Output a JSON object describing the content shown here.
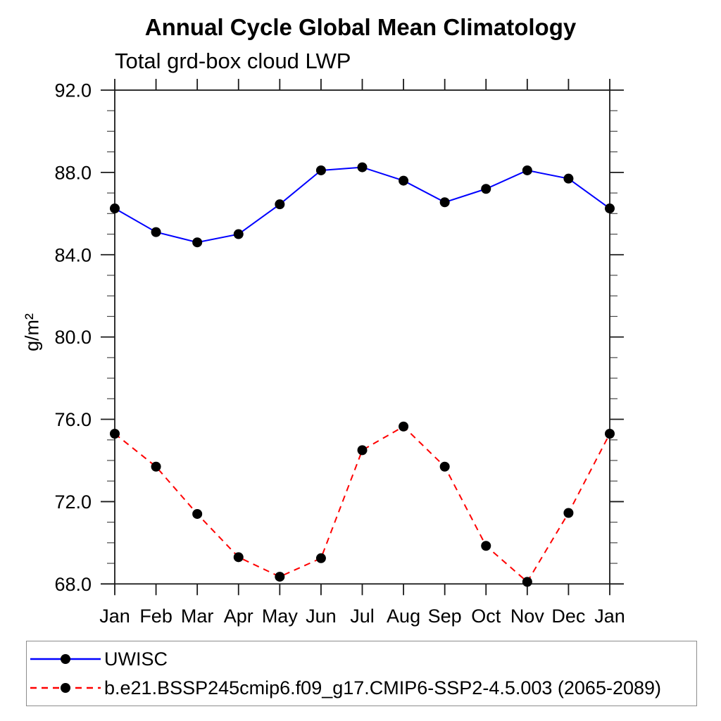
{
  "chart_data": {
    "type": "line",
    "title": "Annual Cycle Global Mean Climatology",
    "subtitle": "Total grd-box cloud LWP",
    "ylabel": "g/m²",
    "xlabel": "",
    "x_categories": [
      "Jan",
      "Feb",
      "Mar",
      "Apr",
      "May",
      "Jun",
      "Jul",
      "Aug",
      "Sep",
      "Oct",
      "Nov",
      "Dec",
      "Jan"
    ],
    "ylim": [
      68.0,
      92.0
    ],
    "y_tick_values": [
      92,
      88,
      84,
      80,
      76,
      72,
      68
    ],
    "y_tick_labels": [
      "92.0",
      "88.0",
      "84.0",
      "80.0",
      "76.0",
      "72.0",
      "68.0"
    ],
    "y_minor_step": 1,
    "grid": false,
    "legend_position": "bottom-left-box",
    "axis_color": "#1a1a1a",
    "marker_radius": 7,
    "series": [
      {
        "name": "UWISC",
        "color": "#0000ff",
        "line_style": "solid",
        "marker": "filled-circle",
        "marker_color": "#000000",
        "values": [
          86.25,
          85.1,
          84.6,
          85.0,
          86.45,
          88.1,
          88.25,
          87.6,
          86.55,
          87.2,
          88.1,
          87.7,
          86.25
        ]
      },
      {
        "name": "b.e21.BSSP245cmip6.f09_g17.CMIP6-SSP2-4.5.003 (2065-2089)",
        "color": "#ff0000",
        "line_style": "dashed",
        "marker": "filled-circle",
        "marker_color": "#000000",
        "values": [
          75.3,
          73.7,
          71.4,
          69.3,
          68.35,
          69.25,
          74.5,
          75.65,
          73.7,
          69.85,
          68.1,
          71.45,
          75.3
        ]
      }
    ]
  }
}
